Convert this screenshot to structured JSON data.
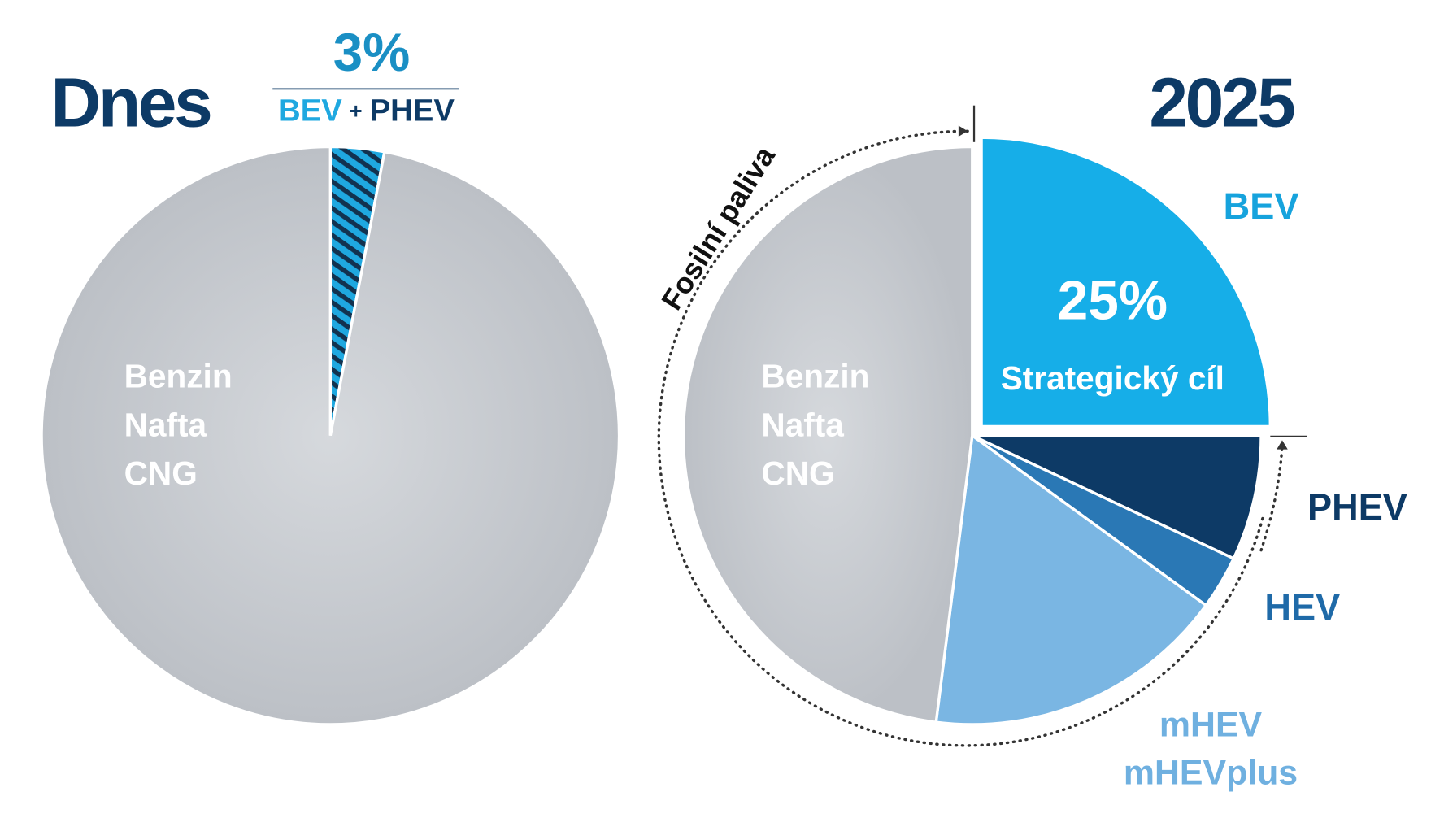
{
  "chart_data": [
    {
      "type": "pie",
      "title": "Dnes",
      "categories": [
        [
          "BEV",
          "+",
          "PHEV"
        ],
        [
          "Benzin",
          "Nafta",
          "CNG"
        ]
      ],
      "values": [
        3,
        97
      ],
      "value_labels": [
        "3%",
        null
      ],
      "colors": [
        "#1fa8e0",
        "#c4c8cd"
      ]
    },
    {
      "type": "pie",
      "title": "2025",
      "annotation": "Fosilní paliva",
      "categories": [
        [
          "BEV"
        ],
        [
          "PHEV"
        ],
        [
          "HEV"
        ],
        [
          "mHEV",
          "mHEVplus"
        ],
        [
          "Benzin",
          "Nafta",
          "CNG"
        ]
      ],
      "values": [
        25,
        7,
        3,
        17,
        48
      ],
      "value_labels": [
        "25%",
        null,
        null,
        null,
        null
      ],
      "value_notes": [
        "Strategický cíl",
        null,
        null,
        null,
        null
      ],
      "colors": [
        "#16aee8",
        "#0d3a66",
        "#2a78b5",
        "#7ab6e3",
        "#c4c8cd"
      ]
    }
  ]
}
